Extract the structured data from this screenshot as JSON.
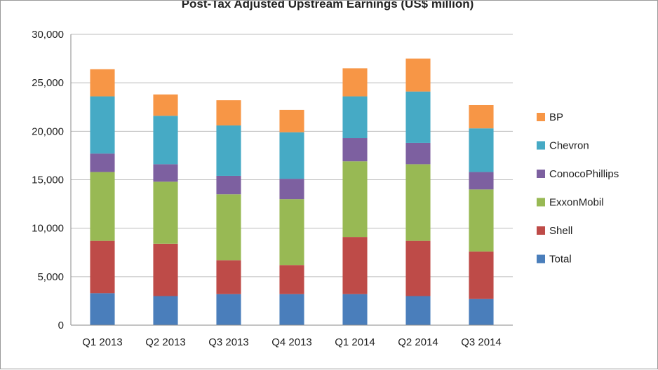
{
  "chart_data": {
    "type": "bar",
    "stacked": true,
    "title": "Post-Tax Adjusted Upstream Earnings (US$ million)",
    "xlabel": "",
    "ylabel": "",
    "categories": [
      "Q1 2013",
      "Q2 2013",
      "Q3 2013",
      "Q4 2013",
      "Q1 2014",
      "Q2 2014",
      "Q3 2014"
    ],
    "ylim": [
      0,
      30000
    ],
    "yticks": [
      "0",
      "5,000",
      "10,000",
      "15,000",
      "20,000",
      "25,000",
      "30,000"
    ],
    "ytick_values": [
      0,
      5000,
      10000,
      15000,
      20000,
      25000,
      30000
    ],
    "grid": true,
    "legend_position": "right",
    "series": [
      {
        "name": "Total",
        "color": "#4a7ebb",
        "values": [
          3300,
          3000,
          3200,
          3200,
          3200,
          3000,
          2700
        ]
      },
      {
        "name": "Shell",
        "color": "#be4b48",
        "values": [
          5400,
          5400,
          3500,
          3000,
          5900,
          5700,
          4900
        ]
      },
      {
        "name": "ExxonMobil",
        "color": "#98b954",
        "values": [
          7100,
          6400,
          6800,
          6800,
          7800,
          7900,
          6400
        ]
      },
      {
        "name": "ConocoPhillips",
        "color": "#7d60a0",
        "values": [
          1900,
          1800,
          1900,
          2100,
          2400,
          2200,
          1800
        ]
      },
      {
        "name": "Chevron",
        "color": "#46aac5",
        "values": [
          5900,
          5000,
          5200,
          4800,
          4300,
          5300,
          4500
        ]
      },
      {
        "name": "BP",
        "color": "#f79646",
        "values": [
          2800,
          2200,
          2600,
          2300,
          2900,
          3400,
          2400
        ]
      }
    ],
    "legend_order": [
      "BP",
      "Chevron",
      "ConocoPhillips",
      "ExxonMobil",
      "Shell",
      "Total"
    ]
  }
}
